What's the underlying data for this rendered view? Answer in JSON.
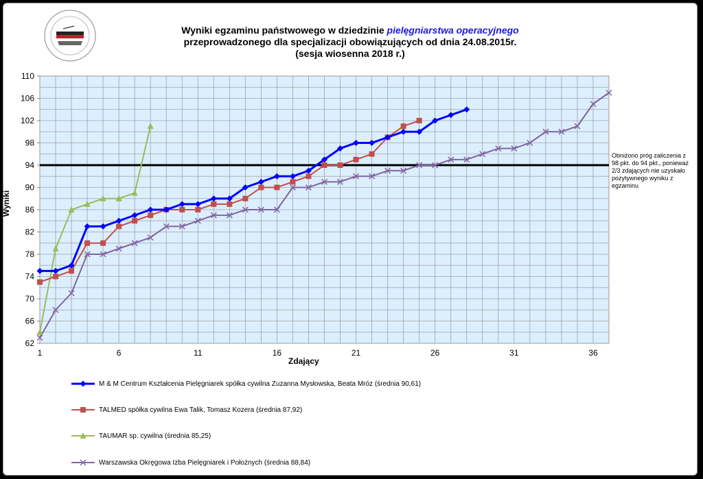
{
  "title": {
    "line1_a": "Wyniki egzaminu państwowego w dziedzinie ",
    "line1_b": "pielęgniarstwa  operacyjnego",
    "line2": "przeprowadzonego dla specjalizacji obowiązujących od dnia 24.08.2015r.",
    "line3": "(sesja wiosenna 2018 r.)"
  },
  "logo": {
    "arc_text": "CENTRUM KSZTAŁCENIA PODYPLOMOWEGO PIELĘGNIAREK I POŁOŻNYCH"
  },
  "note": "Obniżono próg zaliczenia z 98 pkt. do 94 pkt., ponieważ 2/3 zdających nie uzyskało pozytywnego wyniku z egzaminu",
  "chart_data": {
    "type": "line",
    "xlabel": "Zdający",
    "ylabel": "Wyniki",
    "ylim": [
      62,
      110
    ],
    "xlim": [
      1,
      37
    ],
    "y_ticks": [
      62,
      66,
      70,
      74,
      78,
      82,
      86,
      90,
      94,
      98,
      102,
      106,
      110
    ],
    "x_ticks": [
      1,
      6,
      11,
      16,
      21,
      26,
      31,
      36
    ],
    "threshold": 94,
    "grid": true,
    "legend_position": "bottom",
    "series": [
      {
        "name": "M & M Centrum Kształcenia Pielęgniarek spółka cywilna Zuzanna Mysłowska, Beata Mróz (średnia 90,61)",
        "color": "#0000ff",
        "marker": "diamond",
        "values": [
          75,
          75,
          76,
          83,
          83,
          84,
          85,
          86,
          86,
          87,
          87,
          88,
          88,
          90,
          91,
          92,
          92,
          93,
          95,
          97,
          98,
          98,
          99,
          100,
          100,
          102,
          103,
          104
        ]
      },
      {
        "name": "TALMED spółka cywilna Ewa Talik, Tomasz Kozera (średnia 87,92)",
        "color": "#c0504d",
        "marker": "square",
        "values": [
          73,
          74,
          75,
          80,
          80,
          83,
          84,
          85,
          86,
          86,
          86,
          87,
          87,
          88,
          90,
          90,
          91,
          92,
          94,
          94,
          95,
          96,
          99,
          101,
          102
        ]
      },
      {
        "name": "TAUMAR sp. cywilna (średnia 85,25)",
        "color": "#9bbb59",
        "marker": "triangle",
        "values": [
          64,
          79,
          86,
          87,
          88,
          88,
          89,
          101
        ]
      },
      {
        "name": "Warszawska Okręgowa Izba Pielęgniarek i Położnych (średnia 88,84)",
        "color": "#8064a2",
        "marker": "x",
        "values": [
          63,
          68,
          71,
          78,
          78,
          79,
          80,
          81,
          83,
          83,
          84,
          85,
          85,
          86,
          86,
          86,
          90,
          90,
          91,
          91,
          92,
          92,
          93,
          93,
          94,
          94,
          95,
          95,
          96,
          97,
          97,
          98,
          100,
          100,
          101,
          105,
          107
        ]
      }
    ]
  }
}
